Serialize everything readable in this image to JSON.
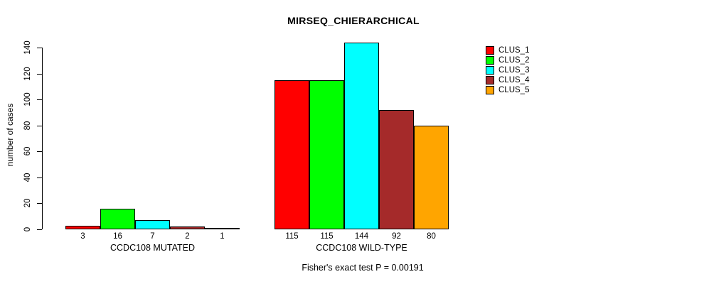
{
  "title": "MIRSEQ_CHIERARCHICAL",
  "footer": "Fisher's exact test P = 0.00191",
  "chart_data": {
    "type": "bar",
    "title": "MIRSEQ_CHIERARCHICAL",
    "ylabel": "number of cases",
    "xlabel": "",
    "ylim": [
      0,
      140
    ],
    "yticks": [
      0,
      20,
      40,
      60,
      80,
      100,
      120,
      140
    ],
    "grid": false,
    "legend_position": "top-right",
    "bar_value_labels": true,
    "categories": [
      "CCDC108 MUTATED",
      "CCDC108 WILD-TYPE"
    ],
    "series": [
      {
        "name": "CLUS_1",
        "color": "#FF0000",
        "values": [
          3,
          115
        ]
      },
      {
        "name": "CLUS_2",
        "color": "#00FF00",
        "values": [
          16,
          115
        ]
      },
      {
        "name": "CLUS_3",
        "color": "#00FFFF",
        "values": [
          7,
          144
        ]
      },
      {
        "name": "CLUS_4",
        "color": "#A52A2A",
        "values": [
          2,
          92
        ]
      },
      {
        "name": "CLUS_5",
        "color": "#FFA500",
        "values": [
          1,
          80
        ]
      }
    ],
    "annotation": "Fisher's exact test P = 0.00191"
  }
}
